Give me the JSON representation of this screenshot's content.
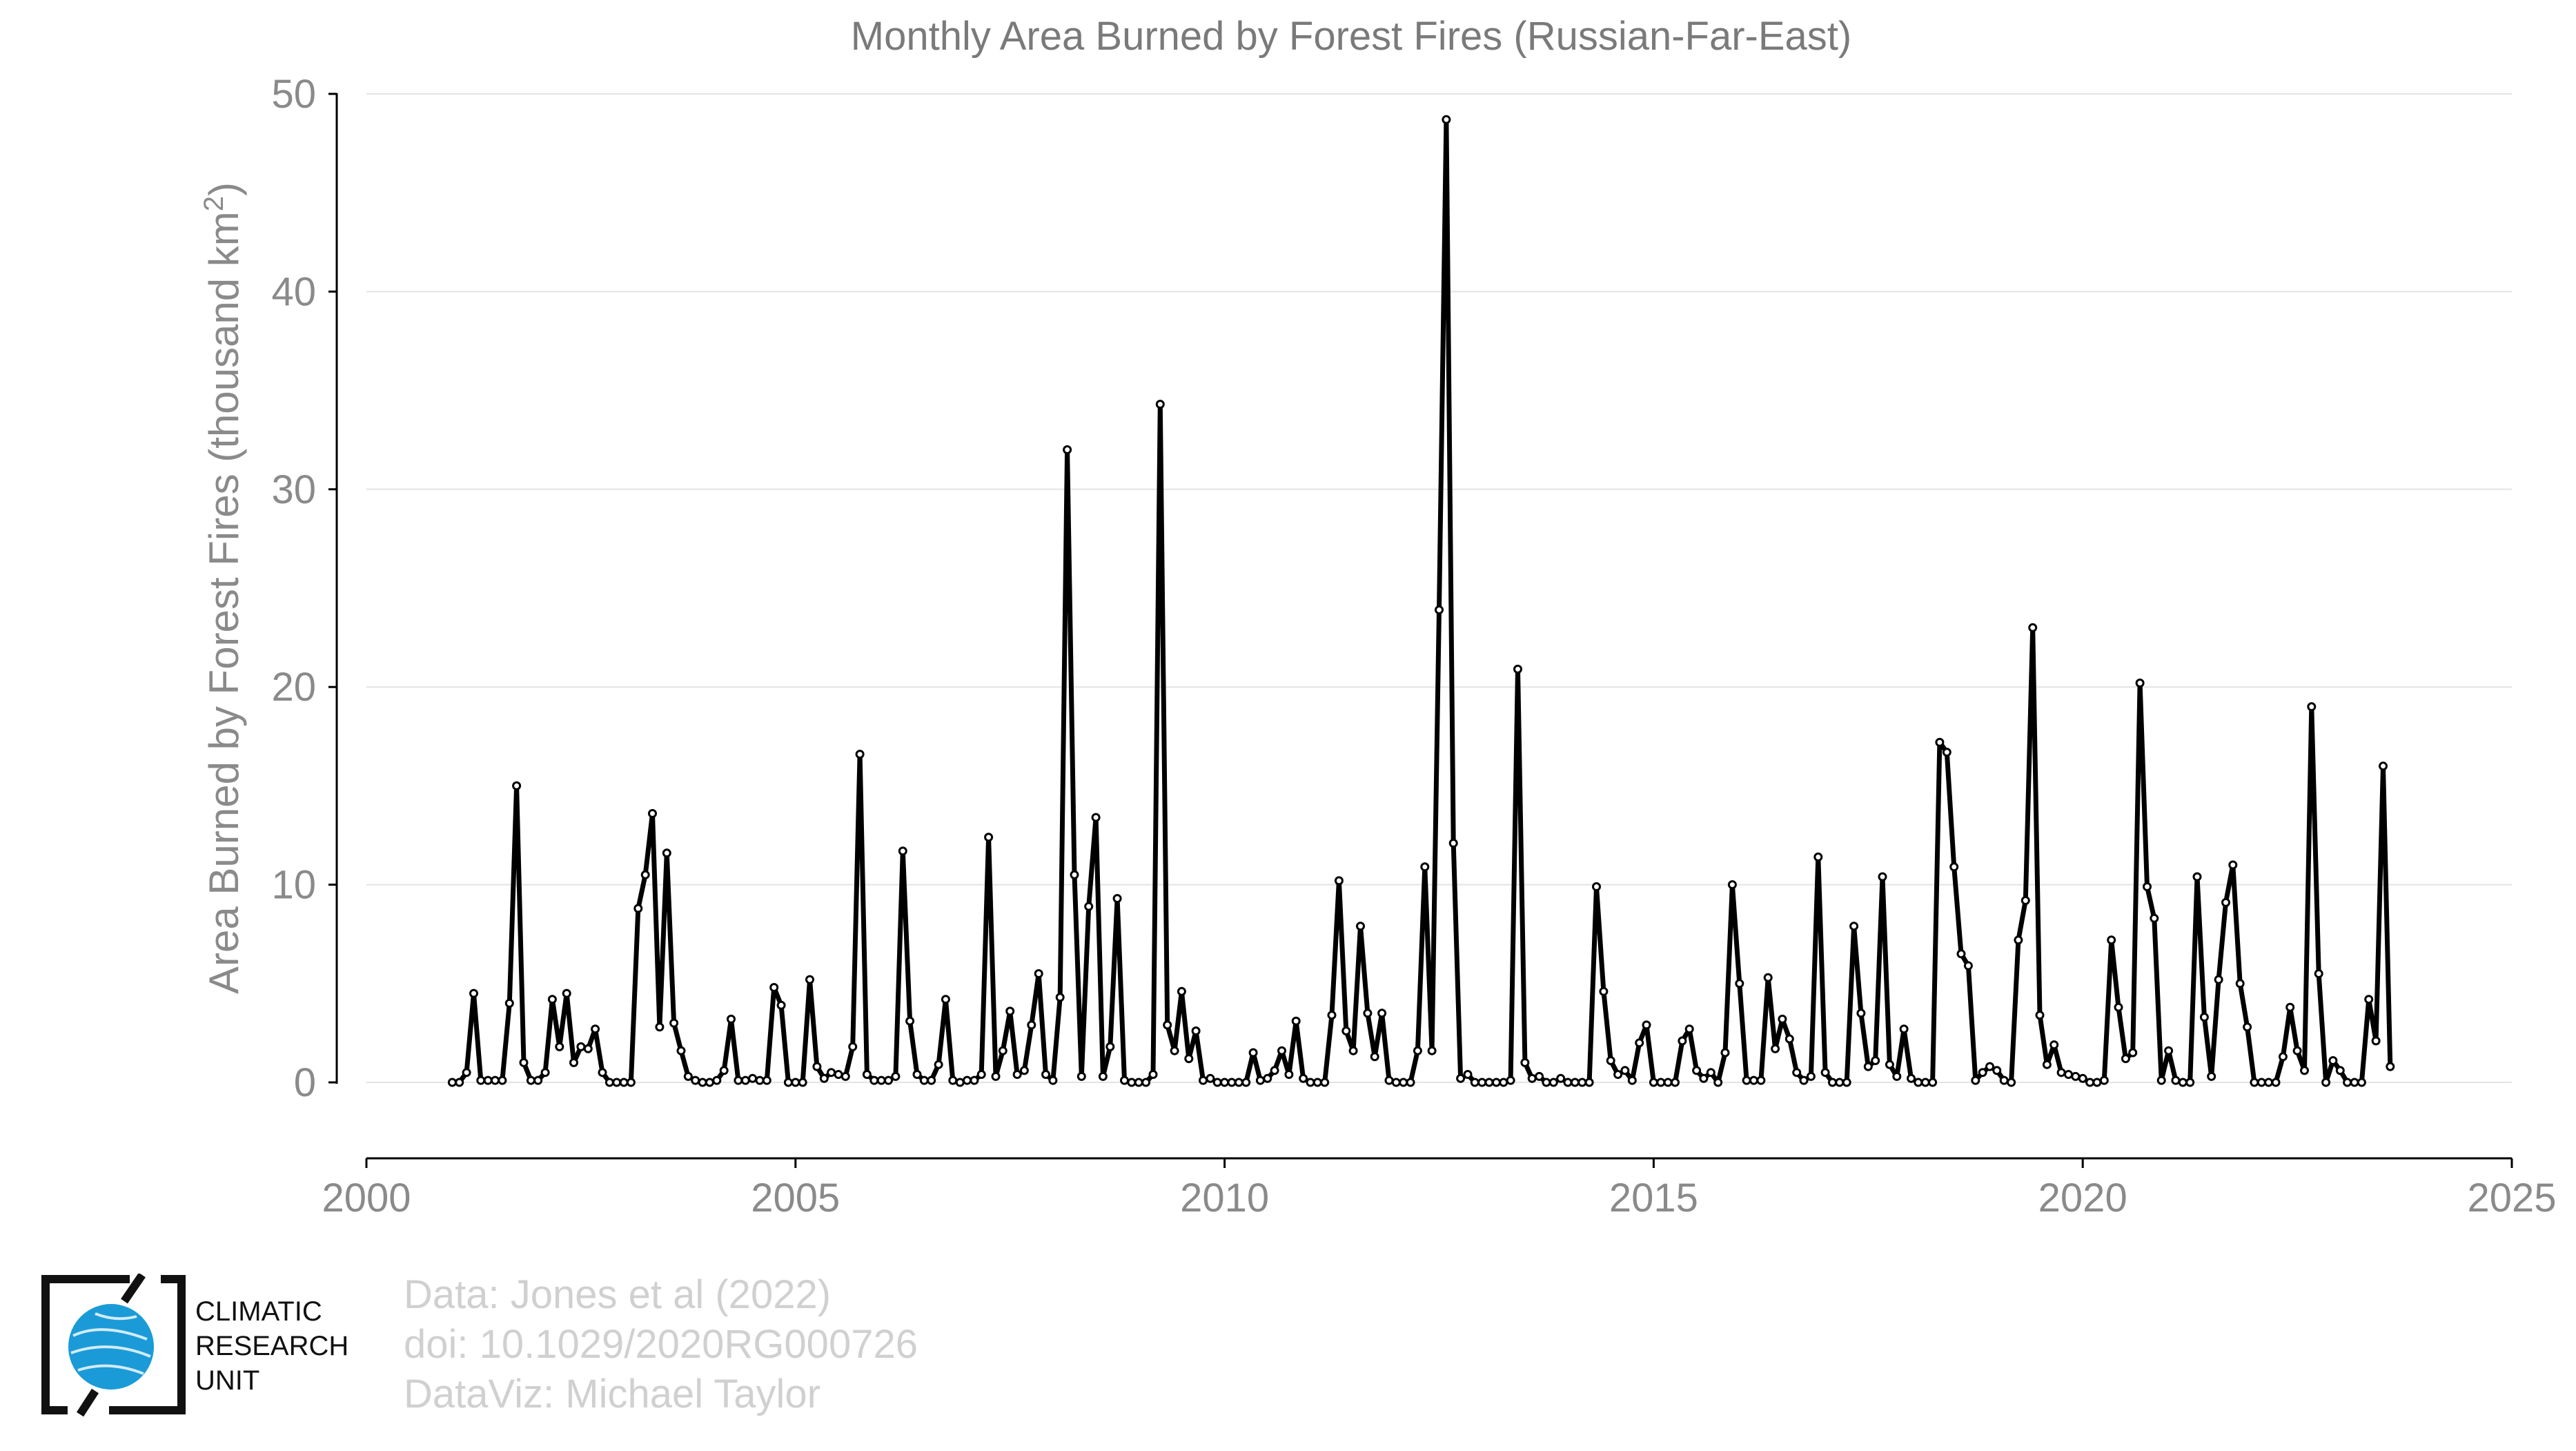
{
  "chart_data": {
    "type": "line",
    "title": "Monthly Area Burned by Forest Fires (Russian-Far-East)",
    "ylabel": "Area Burned by Forest Fires (thousand km",
    "ylabel_sup": "2",
    "ylabel_end": ")",
    "xlim": [
      2000,
      2025
    ],
    "ylim": [
      -4,
      50
    ],
    "xticks": [
      2000,
      2005,
      2010,
      2015,
      2020,
      2025
    ],
    "yticks": [
      0,
      10,
      20,
      30,
      40,
      50
    ],
    "grid": "horizontal",
    "legend": "none",
    "line_color": "#000000",
    "start_year": 2001,
    "start_month": 1,
    "values": [
      0,
      0,
      0.5,
      4.5,
      0.1,
      0.1,
      0.1,
      0.1,
      4.0,
      15.0,
      1.0,
      0.1,
      0.1,
      0.5,
      4.2,
      1.8,
      4.5,
      1.0,
      1.8,
      1.7,
      2.7,
      0.5,
      0,
      0,
      0,
      0,
      8.8,
      10.5,
      13.6,
      2.8,
      11.6,
      3.0,
      1.6,
      0.3,
      0.1,
      0,
      0,
      0.1,
      0.6,
      3.2,
      0.1,
      0.1,
      0.2,
      0.1,
      0.1,
      4.8,
      3.9,
      0,
      0,
      0,
      5.2,
      0.8,
      0.2,
      0.5,
      0.4,
      0.3,
      1.8,
      16.6,
      0.4,
      0.1,
      0.1,
      0.1,
      0.3,
      11.7,
      3.1,
      0.4,
      0.1,
      0.1,
      0.9,
      4.2,
      0.1,
      0,
      0.1,
      0.1,
      0.4,
      12.4,
      0.3,
      1.6,
      3.6,
      0.4,
      0.6,
      2.9,
      5.5,
      0.4,
      0.1,
      4.3,
      32.0,
      10.5,
      0.3,
      8.9,
      13.4,
      0.3,
      1.8,
      9.3,
      0.1,
      0,
      0,
      0,
      0.4,
      34.3,
      2.9,
      1.6,
      4.6,
      1.2,
      2.6,
      0.1,
      0.2,
      0,
      0,
      0,
      0,
      0,
      1.5,
      0.1,
      0.2,
      0.6,
      1.6,
      0.4,
      3.1,
      0.2,
      0,
      0,
      0,
      3.4,
      10.2,
      2.6,
      1.6,
      7.9,
      3.5,
      1.3,
      3.5,
      0.1,
      0,
      0,
      0,
      1.6,
      10.9,
      1.6,
      23.9,
      48.7,
      12.1,
      0.2,
      0.4,
      0,
      0,
      0,
      0,
      0,
      0.1,
      20.9,
      1.0,
      0.2,
      0.3,
      0,
      0,
      0.2,
      0,
      0,
      0,
      0,
      9.9,
      4.6,
      1.1,
      0.4,
      0.6,
      0.1,
      2.0,
      2.9,
      0,
      0,
      0,
      0,
      2.1,
      2.7,
      0.6,
      0.2,
      0.5,
      0,
      1.5,
      10.0,
      5.0,
      0.1,
      0.1,
      0.1,
      5.3,
      1.7,
      3.2,
      2.2,
      0.5,
      0.1,
      0.3,
      11.4,
      0.5,
      0,
      0,
      0,
      7.9,
      3.5,
      0.8,
      1.1,
      10.4,
      0.9,
      0.3,
      2.7,
      0.2,
      0,
      0,
      0,
      17.2,
      16.7,
      10.9,
      6.5,
      5.9,
      0.1,
      0.5,
      0.8,
      0.6,
      0.1,
      0,
      7.2,
      9.2,
      23.0,
      3.4,
      0.9,
      1.9,
      0.5,
      0.4,
      0.3,
      0.2,
      0,
      0,
      0.1,
      7.2,
      3.8,
      1.2,
      1.5,
      20.2,
      9.9,
      8.3,
      0.1,
      1.6,
      0.1,
      0,
      0,
      10.4,
      3.3,
      0.3,
      5.2,
      9.1,
      11.0,
      5.0,
      2.8,
      0,
      0,
      0,
      0,
      1.3,
      3.8,
      1.6,
      0.6,
      19.0,
      5.5,
      0,
      1.1,
      0.6,
      0,
      0,
      0,
      4.2,
      2.1,
      16.0,
      0.8
    ]
  },
  "credit": {
    "line1": "Data: Jones et al (2022)",
    "line2": "doi: 10.1029/2020RG000726",
    "line3": "DataViz: Michael Taylor"
  },
  "logo": {
    "line1": "CLIMATIC",
    "line2": "RESEARCH",
    "line3": "UNIT",
    "globe_color": "#1a9bd7"
  }
}
